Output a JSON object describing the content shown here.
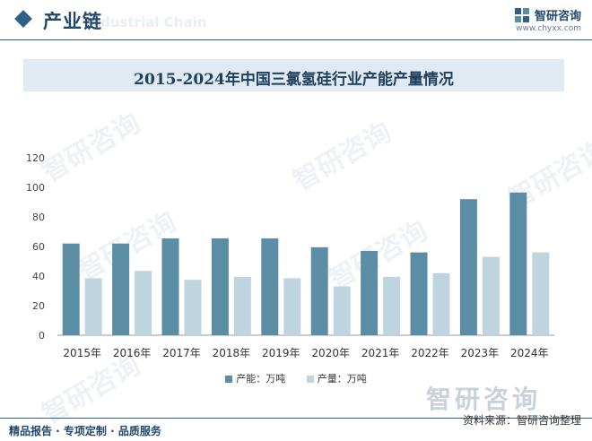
{
  "header": {
    "section_title": "产业链",
    "section_subtitle": "Industrial Chain",
    "brand_name": "智研咨询",
    "brand_url": "www.chyxx.com"
  },
  "watermark_text": "智研咨询",
  "footer": {
    "left": "精品报告 · 专项定制 · 品质服务",
    "source": "资料来源：智研咨询整理",
    "logo_text": "智研咨询"
  },
  "colors": {
    "capacity": "#5b8ea5",
    "output": "#bed4de",
    "accent": "#2e5f87"
  },
  "chart_data": {
    "type": "bar",
    "title": "2015-2024年中国三氯氢硅行业产能产量情况",
    "categories": [
      "2015年",
      "2016年",
      "2017年",
      "2018年",
      "2019年",
      "2020年",
      "2021年",
      "2022年",
      "2023年",
      "2024年"
    ],
    "series": [
      {
        "name": "产能：万吨",
        "values": [
          62,
          62,
          65.5,
          65.5,
          65.5,
          59.5,
          57,
          56,
          92,
          96.5
        ]
      },
      {
        "name": "产量：万吨",
        "values": [
          38.5,
          43.5,
          37.5,
          39.5,
          38.5,
          33,
          39.5,
          42,
          53,
          56
        ]
      }
    ],
    "ylim": [
      0,
      120
    ],
    "yticks": [
      0,
      20,
      40,
      60,
      80,
      100,
      120
    ],
    "grid": false,
    "legend_position": "bottom"
  }
}
